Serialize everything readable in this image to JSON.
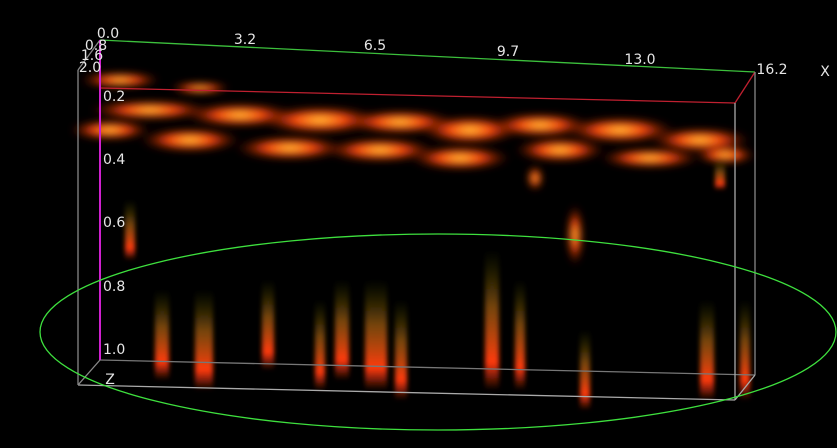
{
  "axes": {
    "x": {
      "label": "X",
      "ticks": [
        "0.0",
        "3.2",
        "6.5",
        "9.7",
        "13.0",
        "16.2"
      ]
    },
    "y": {
      "ticks": [
        "0.8",
        "1.6",
        "2.0"
      ]
    },
    "z": {
      "label": "Z",
      "ticks": [
        "0.2",
        "0.4",
        "0.6",
        "0.8",
        "1.0"
      ]
    }
  }
}
